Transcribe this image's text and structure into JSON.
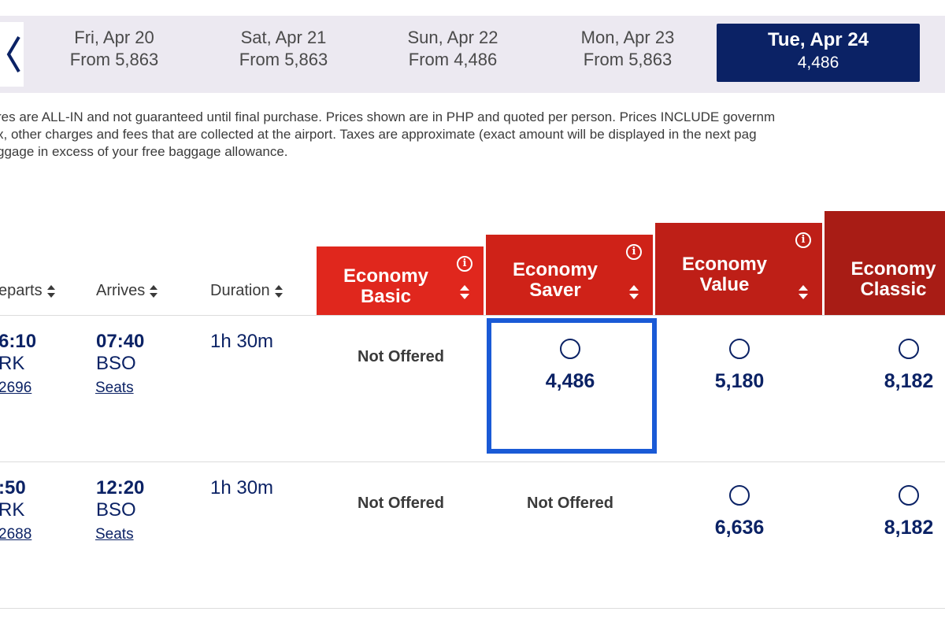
{
  "dates": {
    "prev_label": "<",
    "items": [
      {
        "day": "Fri, Apr 20",
        "price": "From 5,863"
      },
      {
        "day": "Sat, Apr 21",
        "price": "From 5,863"
      },
      {
        "day": "Sun, Apr 22",
        "price": "From 4,486"
      },
      {
        "day": "Mon, Apr 23",
        "price": "From 5,863"
      },
      {
        "day": "Tue, Apr 24",
        "price": "4,486"
      }
    ]
  },
  "disclaimer": {
    "line1": "res are ALL-IN and not guaranteed until final purchase. Prices shown are in PHP and quoted per person. Prices INCLUDE governm",
    "line2": "x, other charges and fees that are collected at the airport. Taxes are approximate (exact amount will be displayed in the next pag",
    "line3": "ggage in excess of your free baggage allowance."
  },
  "fares": [
    {
      "line1": "Economy",
      "line2": "Basic",
      "color": "#e0271d"
    },
    {
      "line1": "Economy",
      "line2": "Saver",
      "color": "#cf2218"
    },
    {
      "line1": "Economy",
      "line2": "Value",
      "color": "#be1f17"
    },
    {
      "line1": "Economy",
      "line2": "Classic",
      "color": "#a81c15"
    }
  ],
  "info_label": "i",
  "columns": {
    "departs": "eparts",
    "arrives": "Arrives",
    "duration": "Duration"
  },
  "flights": [
    {
      "depart_time": "6:10",
      "depart_code": "RK",
      "flight_no": "2696",
      "arrive_time": "07:40",
      "arrive_code": "BSO",
      "seats": "Seats",
      "duration": "1h 30m",
      "basic": "Not Offered",
      "saver": "4,486",
      "value": "5,180",
      "classic": "8,182"
    },
    {
      "depart_time": ":50",
      "depart_code": "RK",
      "flight_no": "2688",
      "arrive_time": "12:20",
      "arrive_code": "BSO",
      "seats": "Seats",
      "duration": "1h 30m",
      "basic": "Not Offered",
      "saver": "Not Offered",
      "value": "6,636",
      "classic": "8,182"
    }
  ],
  "selected": {
    "flight": 0,
    "fare": "Economy Saver"
  }
}
